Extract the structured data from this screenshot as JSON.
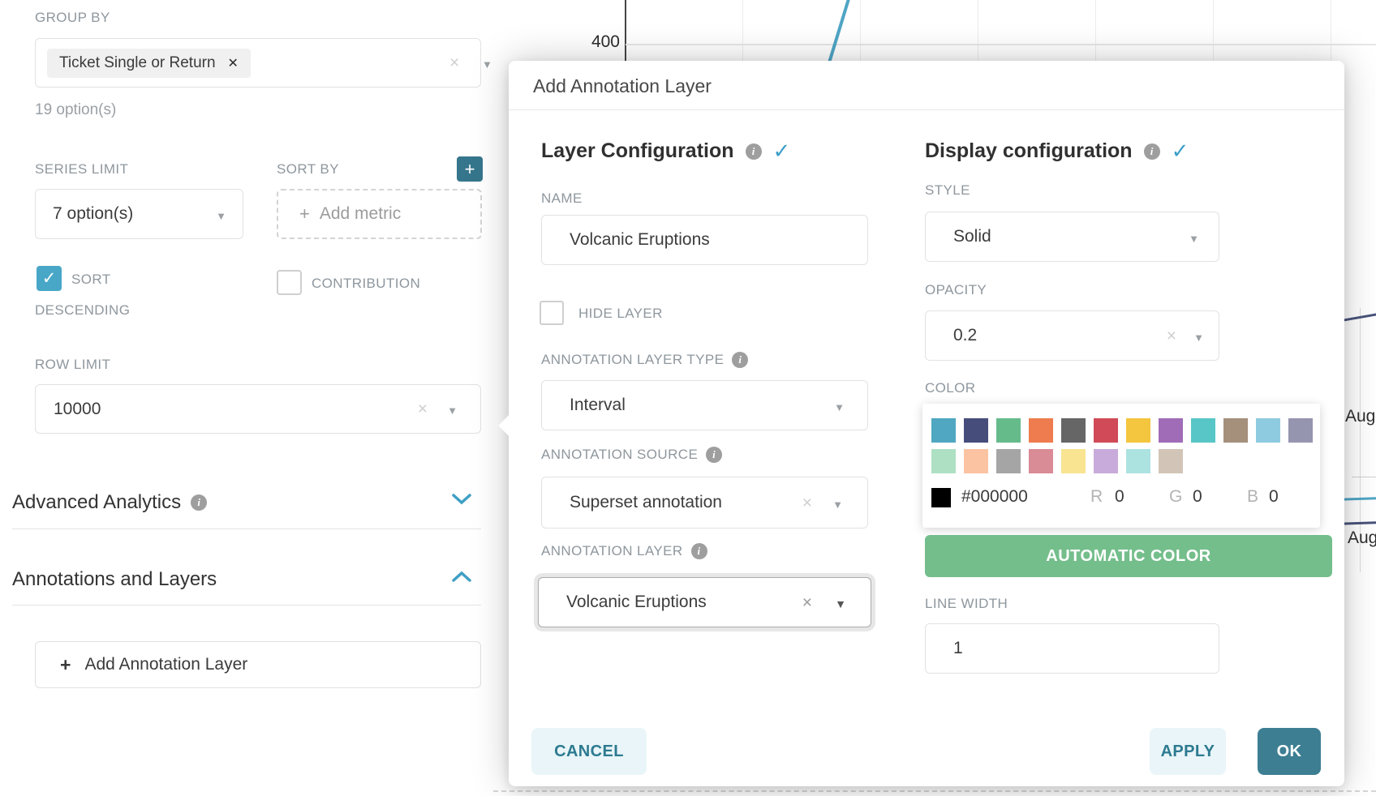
{
  "icons": {
    "caret_down": "▼",
    "clear_x": "×",
    "remove_x": "✕",
    "check": "✓",
    "plus": "+",
    "info_i": "i"
  },
  "chart": {
    "y_axis_tick": "400",
    "right_axis_label_1": "Aug",
    "right_axis_label_2": "Aug",
    "line_blue": "#4FA5C5",
    "line_navy": "#49537B"
  },
  "left_panel": {
    "group_by": {
      "label": "GROUP BY",
      "tag": "Ticket Single or Return",
      "hint": "19 option(s)"
    },
    "series_limit": {
      "label": "SERIES LIMIT",
      "value": "7 option(s)"
    },
    "sort_by": {
      "label": "SORT BY",
      "add_metric": "Add metric"
    },
    "sort_descending": {
      "label": "SORT DESCENDING",
      "checked": true
    },
    "contribution": {
      "label": "CONTRIBUTION",
      "checked": false
    },
    "row_limit": {
      "label": "ROW LIMIT",
      "value": "10000"
    },
    "advanced_analytics": {
      "label": "Advanced Analytics"
    },
    "annotations_layers": {
      "label": "Annotations and Layers"
    },
    "add_annotation_layer": {
      "label": "Add Annotation Layer"
    }
  },
  "modal": {
    "title": "Add Annotation Layer",
    "layer_config": {
      "heading": "Layer Configuration",
      "name": {
        "label": "NAME",
        "value": "Volcanic Eruptions"
      },
      "hide_layer": {
        "label": "HIDE LAYER",
        "checked": false
      },
      "layer_type": {
        "label": "ANNOTATION LAYER TYPE",
        "value": "Interval"
      },
      "source": {
        "label": "ANNOTATION SOURCE",
        "value": "Superset annotation"
      },
      "layer": {
        "label": "ANNOTATION LAYER",
        "value": "Volcanic Eruptions"
      }
    },
    "display_config": {
      "heading": "Display configuration",
      "style": {
        "label": "STYLE",
        "value": "Solid"
      },
      "opacity": {
        "label": "OPACITY",
        "value": "0.2"
      },
      "color": {
        "label": "COLOR",
        "palette_row1": [
          "#4FA7C1",
          "#474D7B",
          "#66BB8B",
          "#EE7C4E",
          "#666666",
          "#D04A57",
          "#F4C53F",
          "#A06CB8",
          "#58C6C6",
          "#A5907C",
          "#8FCBE0",
          "#9695B0"
        ],
        "palette_row2": [
          "#AEE0C4",
          "#FBC3A2",
          "#A5A5A5",
          "#D98B96",
          "#F8E491",
          "#C8ABDB",
          "#ACE3E1",
          "#D2C5B7"
        ],
        "hex": "#000000",
        "r_label": "R",
        "r_value": "0",
        "g_label": "G",
        "g_value": "0",
        "b_label": "B",
        "b_value": "0",
        "automatic_button": "AUTOMATIC COLOR"
      },
      "line_width": {
        "label": "LINE WIDTH",
        "value": "1"
      }
    },
    "footer": {
      "cancel": "CANCEL",
      "apply": "APPLY",
      "ok": "OK"
    }
  }
}
